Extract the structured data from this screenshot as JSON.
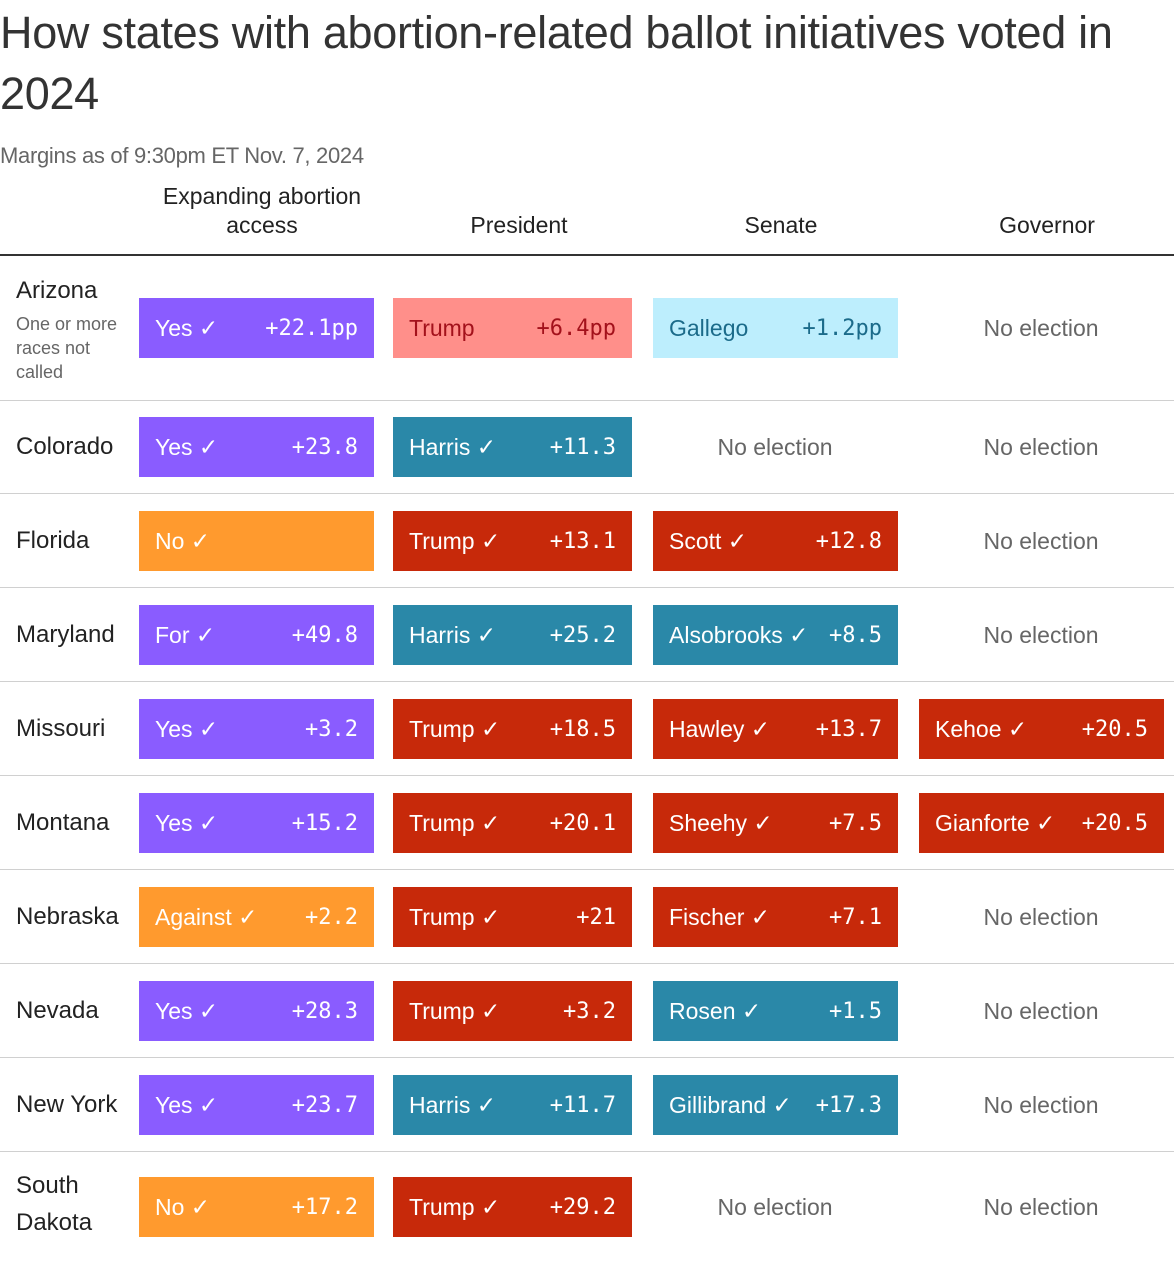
{
  "title": "How states with abortion-related ballot initiatives voted in 2024",
  "subtitle": "Margins as of 9:30pm ET Nov. 7, 2024",
  "colors": {
    "abortion_yes": "#8a5cff",
    "abortion_no": "#ff9a2e",
    "dem_called": "#2a88a8",
    "rep_called": "#c7290a",
    "dem_leading": "#bdeefd",
    "rep_leading": "#ff8f8a",
    "dem_leading_text": "#1b6b8a",
    "rep_leading_text": "#a3111b"
  },
  "chart_data": {
    "type": "table",
    "columns": [
      "Expanding abortion access",
      "President",
      "Senate",
      "Governor"
    ],
    "no_election_label": "No election",
    "rows": [
      {
        "state": "Arizona",
        "note": "One or more races not called",
        "abortion": {
          "label": "Yes ✓",
          "margin": "+22.1pp",
          "color": "#8a5cff",
          "text_color": "#ffffff"
        },
        "president": {
          "label": "Trump",
          "margin": "+6.4pp",
          "color": "#ff8f8a",
          "text_color": "#a3111b"
        },
        "senate": {
          "label": "Gallego",
          "margin": "+1.2pp",
          "color": "#bdeefd",
          "text_color": "#1b6b8a"
        },
        "governor": null
      },
      {
        "state": "Colorado",
        "abortion": {
          "label": "Yes ✓",
          "margin": "+23.8",
          "color": "#8a5cff",
          "text_color": "#ffffff"
        },
        "president": {
          "label": "Harris ✓",
          "margin": "+11.3",
          "color": "#2a88a8",
          "text_color": "#ffffff"
        },
        "senate": null,
        "governor": null
      },
      {
        "state": "Florida",
        "abortion": {
          "label": "No ✓",
          "margin": "",
          "color": "#ff9a2e",
          "text_color": "#ffffff"
        },
        "president": {
          "label": "Trump ✓",
          "margin": "+13.1",
          "color": "#c7290a",
          "text_color": "#ffffff"
        },
        "senate": {
          "label": "Scott ✓",
          "margin": "+12.8",
          "color": "#c7290a",
          "text_color": "#ffffff"
        },
        "governor": null
      },
      {
        "state": "Maryland",
        "abortion": {
          "label": "For ✓",
          "margin": "+49.8",
          "color": "#8a5cff",
          "text_color": "#ffffff"
        },
        "president": {
          "label": "Harris ✓",
          "margin": "+25.2",
          "color": "#2a88a8",
          "text_color": "#ffffff"
        },
        "senate": {
          "label": "Alsobrooks ✓",
          "margin": "+8.5",
          "color": "#2a88a8",
          "text_color": "#ffffff"
        },
        "governor": null
      },
      {
        "state": "Missouri",
        "abortion": {
          "label": "Yes ✓",
          "margin": "+3.2",
          "color": "#8a5cff",
          "text_color": "#ffffff"
        },
        "president": {
          "label": "Trump ✓",
          "margin": "+18.5",
          "color": "#c7290a",
          "text_color": "#ffffff"
        },
        "senate": {
          "label": "Hawley ✓",
          "margin": "+13.7",
          "color": "#c7290a",
          "text_color": "#ffffff"
        },
        "governor": {
          "label": "Kehoe ✓",
          "margin": "+20.5",
          "color": "#c7290a",
          "text_color": "#ffffff"
        }
      },
      {
        "state": "Montana",
        "abortion": {
          "label": "Yes ✓",
          "margin": "+15.2",
          "color": "#8a5cff",
          "text_color": "#ffffff"
        },
        "president": {
          "label": "Trump ✓",
          "margin": "+20.1",
          "color": "#c7290a",
          "text_color": "#ffffff"
        },
        "senate": {
          "label": "Sheehy ✓",
          "margin": "+7.5",
          "color": "#c7290a",
          "text_color": "#ffffff"
        },
        "governor": {
          "label": "Gianforte ✓",
          "margin": "+20.5",
          "color": "#c7290a",
          "text_color": "#ffffff"
        }
      },
      {
        "state": "Nebraska",
        "abortion": {
          "label": "Against ✓",
          "margin": "+2.2",
          "color": "#ff9a2e",
          "text_color": "#ffffff"
        },
        "president": {
          "label": "Trump ✓",
          "margin": "+21",
          "color": "#c7290a",
          "text_color": "#ffffff"
        },
        "senate": {
          "label": "Fischer ✓",
          "margin": "+7.1",
          "color": "#c7290a",
          "text_color": "#ffffff"
        },
        "governor": null
      },
      {
        "state": "Nevada",
        "abortion": {
          "label": "Yes ✓",
          "margin": "+28.3",
          "color": "#8a5cff",
          "text_color": "#ffffff"
        },
        "president": {
          "label": "Trump ✓",
          "margin": "+3.2",
          "color": "#c7290a",
          "text_color": "#ffffff"
        },
        "senate": {
          "label": "Rosen ✓",
          "margin": "+1.5",
          "color": "#2a88a8",
          "text_color": "#ffffff"
        },
        "governor": null
      },
      {
        "state": "New York",
        "abortion": {
          "label": "Yes ✓",
          "margin": "+23.7",
          "color": "#8a5cff",
          "text_color": "#ffffff"
        },
        "president": {
          "label": "Harris ✓",
          "margin": "+11.7",
          "color": "#2a88a8",
          "text_color": "#ffffff"
        },
        "senate": {
          "label": "Gillibrand ✓",
          "margin": "+17.3",
          "color": "#2a88a8",
          "text_color": "#ffffff"
        },
        "governor": null
      },
      {
        "state": "South Dakota",
        "abortion": {
          "label": "No ✓",
          "margin": "+17.2",
          "color": "#ff9a2e",
          "text_color": "#ffffff"
        },
        "president": {
          "label": "Trump ✓",
          "margin": "+29.2",
          "color": "#c7290a",
          "text_color": "#ffffff"
        },
        "senate": null,
        "governor": null
      }
    ]
  }
}
